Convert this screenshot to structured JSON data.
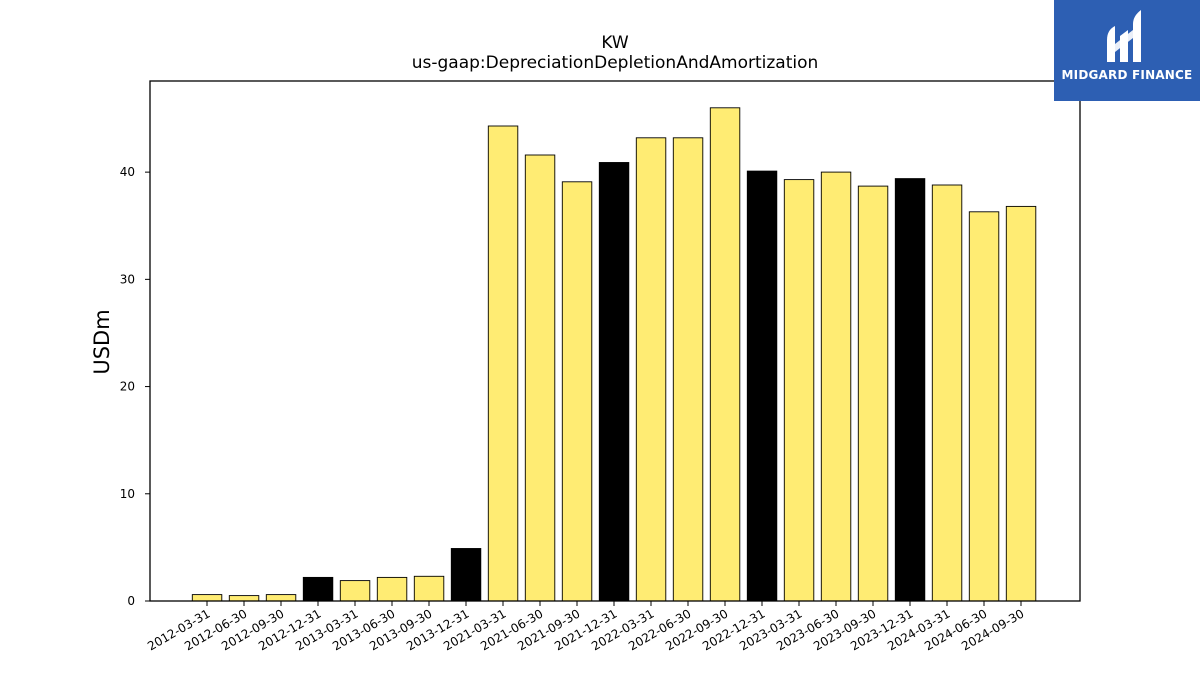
{
  "brand": {
    "name": "MIDGARD FINANCE",
    "bg_color": "#2d5fb3",
    "icon": "midgard-logo-icon"
  },
  "chart_data": {
    "type": "bar",
    "title": "KW",
    "subtitle": "us-gaap:DepreciationDepletionAndAmortization",
    "xlabel": "",
    "ylabel": "USDm",
    "ylim": [
      0,
      48.5
    ],
    "yticks": [
      0,
      10,
      20,
      30,
      40
    ],
    "grid": false,
    "legend": "none",
    "colors": {
      "quarter": "#ffec73",
      "year_end": "#000000",
      "edge": "#000000"
    },
    "categories": [
      "2012-03-31",
      "2012-06-30",
      "2012-09-30",
      "2012-12-31",
      "2013-03-31",
      "2013-06-30",
      "2013-09-30",
      "2013-12-31",
      "2021-03-31",
      "2021-06-30",
      "2021-09-30",
      "2021-12-31",
      "2022-03-31",
      "2022-06-30",
      "2022-09-30",
      "2022-12-31",
      "2023-03-31",
      "2023-06-30",
      "2023-09-30",
      "2023-12-31",
      "2024-03-31",
      "2024-06-30",
      "2024-09-30"
    ],
    "values": [
      0.6,
      0.5,
      0.6,
      2.2,
      1.9,
      2.2,
      2.3,
      4.9,
      44.3,
      41.6,
      39.1,
      40.9,
      43.2,
      43.2,
      46.0,
      40.1,
      39.3,
      40.0,
      38.7,
      39.4,
      38.8,
      36.3,
      36.8
    ],
    "highlight": [
      false,
      false,
      false,
      true,
      false,
      false,
      false,
      true,
      false,
      false,
      false,
      true,
      false,
      false,
      false,
      true,
      false,
      false,
      false,
      true,
      false,
      false,
      false
    ]
  }
}
